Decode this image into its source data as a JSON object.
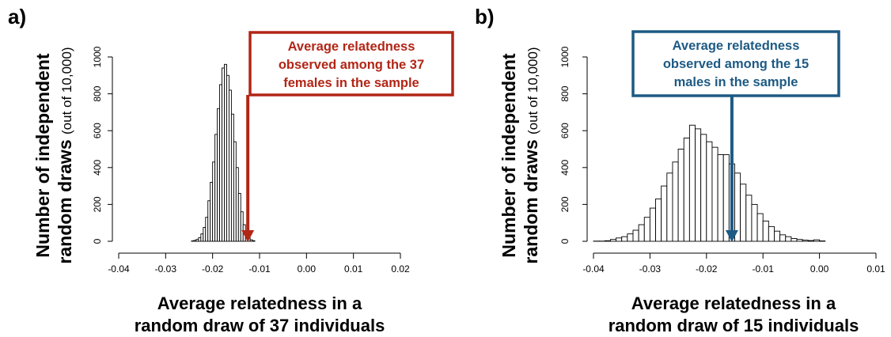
{
  "chart_data": [
    {
      "type": "bar",
      "panel_label": "a)",
      "ylabel_bold": "Number of independent",
      "ylabel_line2_bold": "random draws",
      "ylabel_line2_normal": "(out of 10,000)",
      "xlabel_line1": "Average relatedness in a",
      "xlabel_line2": "random draw of 37 individuals",
      "xlim": [
        -0.04,
        0.02
      ],
      "ylim": [
        0,
        1000
      ],
      "x_ticks": [
        "-0.04",
        "-0.03",
        "-0.02",
        "-0.01",
        "0.00",
        "0.01",
        "0.02"
      ],
      "x_tick_values": [
        -0.04,
        -0.03,
        -0.02,
        -0.01,
        0.0,
        0.01,
        0.02
      ],
      "y_ticks": [
        "0",
        "200",
        "400",
        "600",
        "800",
        "1000"
      ],
      "y_tick_values": [
        0,
        200,
        400,
        600,
        800,
        1000
      ],
      "grid": false,
      "bin_start": -0.0245,
      "bin_width": 0.0005,
      "values": [
        2,
        5,
        10,
        20,
        40,
        75,
        130,
        220,
        320,
        430,
        580,
        720,
        850,
        940,
        960,
        900,
        820,
        690,
        540,
        400,
        260,
        160,
        90,
        45,
        20,
        8,
        3
      ],
      "annotation": {
        "lines": [
          "Average relatedness",
          "observed among the 37",
          "females in the sample"
        ],
        "arrow_x": -0.0125,
        "color": "#b22616"
      }
    },
    {
      "type": "bar",
      "panel_label": "b)",
      "ylabel_bold": "Number of independent",
      "ylabel_line2_bold": "random draws",
      "ylabel_line2_normal": "(out of 10,000)",
      "xlabel_line1": "Average relatedness in a",
      "xlabel_line2": "random draw of 15 individuals",
      "xlim": [
        -0.04,
        0.01
      ],
      "ylim": [
        0,
        1000
      ],
      "x_ticks": [
        "-0.04",
        "-0.03",
        "-0.02",
        "-0.01",
        "0.00",
        "0.01"
      ],
      "x_tick_values": [
        -0.04,
        -0.03,
        -0.02,
        -0.01,
        0.0,
        0.01
      ],
      "y_ticks": [
        "0",
        "200",
        "400",
        "600",
        "800",
        "1000"
      ],
      "y_tick_values": [
        0,
        200,
        400,
        600,
        800,
        1000
      ],
      "grid": false,
      "bin_start": -0.04,
      "bin_width": 0.001,
      "values": [
        1,
        1,
        3,
        10,
        18,
        25,
        40,
        60,
        90,
        130,
        180,
        230,
        300,
        370,
        430,
        500,
        560,
        630,
        610,
        580,
        540,
        510,
        470,
        470,
        420,
        370,
        310,
        250,
        200,
        150,
        110,
        80,
        55,
        35,
        25,
        15,
        10,
        6,
        4,
        8,
        2
      ],
      "annotation": {
        "lines": [
          "Average relatedness",
          "observed among the 15",
          "males in the sample"
        ],
        "arrow_x": -0.0155,
        "color": "#1d5a84"
      }
    }
  ]
}
